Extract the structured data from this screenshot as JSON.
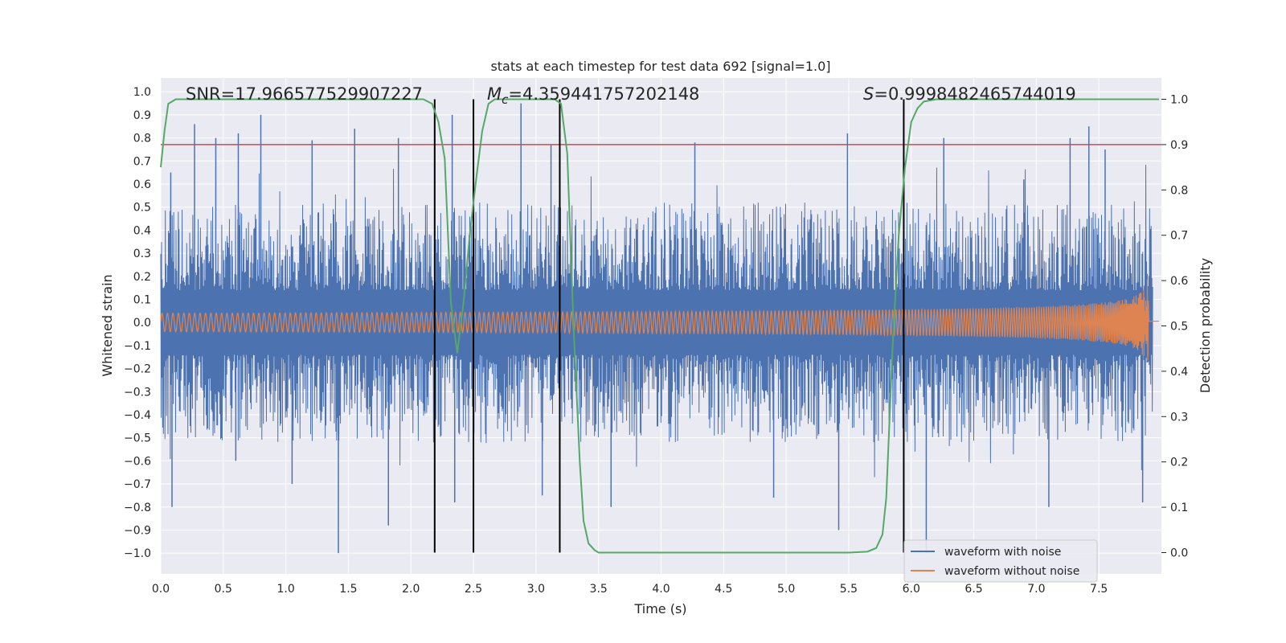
{
  "chart_data": {
    "type": "line",
    "title": "stats at each timestep for test data 692 [signal=1.0]",
    "xlabel": "Time (s)",
    "ylabel_left": "Whitened strain",
    "ylabel_right": "Detection probability",
    "xlim": [
      0.0,
      8.0
    ],
    "ylim_left": [
      -1.09,
      1.06
    ],
    "ylim_right": [
      -0.047,
      1.047
    ],
    "x_ticks": [
      "0.0",
      "0.5",
      "1.0",
      "1.5",
      "2.0",
      "2.5",
      "3.0",
      "3.5",
      "4.0",
      "4.5",
      "5.0",
      "5.5",
      "6.0",
      "6.5",
      "7.0",
      "7.5"
    ],
    "y_ticks_left": [
      "1.0",
      "0.9",
      "0.8",
      "0.7",
      "0.6",
      "0.5",
      "0.4",
      "0.3",
      "0.2",
      "0.1",
      "0.0",
      "−0.1",
      "−0.2",
      "−0.3",
      "−0.4",
      "−0.5",
      "−0.6",
      "−0.7",
      "−0.8",
      "−0.9",
      "−1.0"
    ],
    "y_ticks_right": [
      "1.0",
      "0.9",
      "0.8",
      "0.7",
      "0.6",
      "0.5",
      "0.4",
      "0.3",
      "0.2",
      "0.1",
      "0.0"
    ],
    "annotations": {
      "snr": "SNR=17.966577529907227",
      "mc_symbol": "M",
      "mc_sub": "c",
      "mc_value": "=4.359441757202148",
      "s_symbol": "S",
      "s_value": "=0.9998482465744019"
    },
    "legend": [
      {
        "label": "waveform with noise",
        "color": "#4c72b0"
      },
      {
        "label": "waveform without noise",
        "color": "#dd8452"
      }
    ],
    "colors": {
      "noisy": "#4c72b0",
      "clean": "#dd8452",
      "probability": "#55a868",
      "threshold": "#c44e52",
      "markers": "#000000",
      "background": "#eaeaf2",
      "grid": "#ffffff"
    },
    "threshold": 0.9,
    "vertical_lines": [
      2.19,
      2.5,
      3.19,
      5.94
    ],
    "noise_peaks_upper": [
      0.65,
      0.86,
      0.8,
      0.9,
      0.79,
      0.8,
      0.9,
      0.77,
      0.78,
      0.82,
      0.8,
      0.62,
      0.8,
      0.85,
      0.75,
      0.82,
      0.84,
      0.95
    ],
    "noise_peaks_lower": [
      -0.8,
      -1.0,
      -0.88,
      -0.6,
      -0.7,
      -0.78,
      -0.75,
      -0.8,
      -0.76,
      -0.9,
      -1.0,
      -0.8,
      -0.78
    ],
    "probability": {
      "x": [
        0.0,
        0.03,
        0.06,
        0.12,
        0.25,
        0.5,
        1.0,
        1.5,
        2.0,
        2.1,
        2.17,
        2.22,
        2.27,
        2.32,
        2.37,
        2.42,
        2.47,
        2.52,
        2.57,
        2.62,
        2.67,
        2.72,
        2.8,
        3.0,
        3.15,
        3.2,
        3.25,
        3.3,
        3.35,
        3.38,
        3.42,
        3.47,
        3.5,
        3.6,
        4.0,
        4.5,
        5.0,
        5.5,
        5.65,
        5.72,
        5.77,
        5.8,
        5.85,
        5.9,
        5.95,
        6.0,
        6.05,
        6.1,
        6.2,
        6.3,
        6.6,
        6.8,
        7.0,
        7.5,
        7.98
      ],
      "y": [
        0.85,
        0.93,
        0.99,
        1.0,
        1.0,
        1.0,
        1.0,
        1.0,
        1.0,
        1.0,
        0.99,
        0.95,
        0.87,
        0.55,
        0.44,
        0.55,
        0.7,
        0.82,
        0.93,
        0.99,
        1.0,
        1.0,
        1.0,
        1.0,
        1.0,
        0.99,
        0.88,
        0.5,
        0.2,
        0.07,
        0.02,
        0.005,
        0.0,
        0.0,
        0.0,
        0.0,
        0.0,
        0.0,
        0.002,
        0.01,
        0.04,
        0.12,
        0.45,
        0.7,
        0.85,
        0.95,
        0.98,
        0.995,
        1.0,
        1.0,
        1.0,
        1.0,
        1.0,
        1.0,
        1.0
      ]
    }
  }
}
